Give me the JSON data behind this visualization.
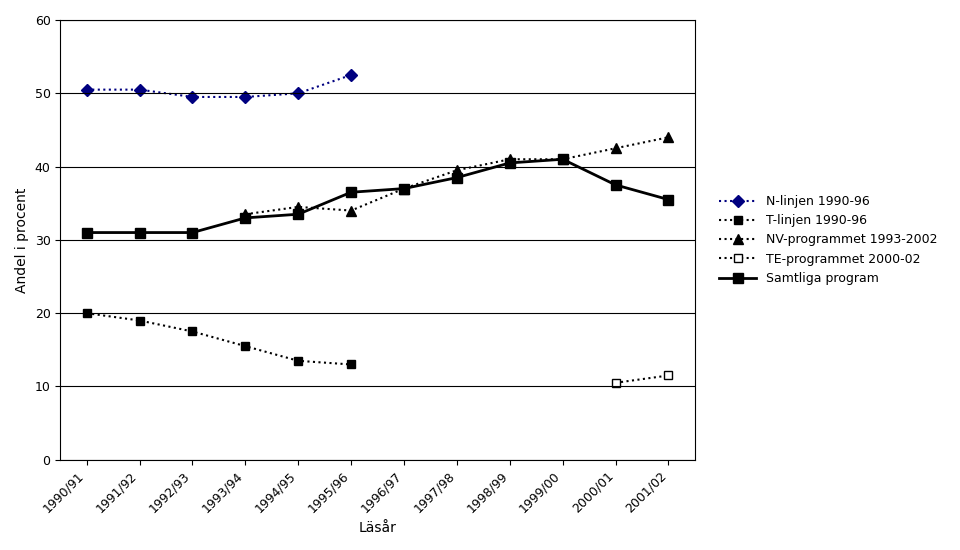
{
  "x_labels": [
    "1990/91",
    "1991/92",
    "1992/93",
    "1993/94",
    "1994/95",
    "1995/96",
    "1996/97",
    "1997/98",
    "1998/99",
    "1999/00",
    "2000/01",
    "2001/02"
  ],
  "x_indices": [
    0,
    1,
    2,
    3,
    4,
    5,
    6,
    7,
    8,
    9,
    10,
    11
  ],
  "N_linjen": {
    "label": "N-linjen 1990-96",
    "x": [
      0,
      1,
      2,
      3,
      4,
      5
    ],
    "y": [
      50.5,
      50.5,
      49.5,
      49.5,
      50.0,
      52.5
    ],
    "color": "#000080",
    "linestyle": "dotted",
    "marker": "D",
    "markersize": 6,
    "linewidth": 1.5,
    "markerfacecolor": "#000080"
  },
  "T_linjen": {
    "label": "T-linjen 1990-96",
    "x": [
      0,
      1,
      2,
      3,
      4,
      5
    ],
    "y": [
      20.0,
      19.0,
      17.5,
      15.5,
      13.5,
      13.0
    ],
    "color": "#000000",
    "linestyle": "dotted",
    "marker": "s",
    "markersize": 6,
    "linewidth": 1.5,
    "markerfacecolor": "#000000"
  },
  "NV_programmet": {
    "label": "NV-programmet 1993-2002",
    "x": [
      3,
      4,
      5,
      6,
      7,
      8,
      9,
      10,
      11
    ],
    "y": [
      33.5,
      34.5,
      34.0,
      37.0,
      39.5,
      41.0,
      41.0,
      42.5,
      44.0
    ],
    "color": "#000000",
    "linestyle": "dotted",
    "marker": "^",
    "markersize": 7,
    "linewidth": 1.5,
    "markerfacecolor": "#000000"
  },
  "TE_programmet": {
    "label": "TE-programmet 2000-02",
    "x": [
      10,
      11
    ],
    "y": [
      10.5,
      11.5
    ],
    "color": "#000000",
    "linestyle": "dotted",
    "marker": "s",
    "markersize": 6,
    "linewidth": 1.5,
    "markerfacecolor": "#ffffff",
    "markeredgecolor": "#000000"
  },
  "Samtliga": {
    "label": "Samtliga program",
    "x": [
      0,
      1,
      2,
      3,
      4,
      5,
      6,
      7,
      8,
      9,
      10,
      11
    ],
    "y": [
      31.0,
      31.0,
      31.0,
      33.0,
      33.5,
      36.5,
      37.0,
      38.5,
      40.5,
      41.0,
      37.5,
      35.5
    ],
    "color": "#000000",
    "linestyle": "solid",
    "marker": "s",
    "markersize": 7,
    "linewidth": 2.0,
    "markerfacecolor": "#000000"
  },
  "ylabel": "Andel i procent",
  "xlabel": "Läsår",
  "ylim": [
    0,
    60
  ],
  "yticks": [
    0,
    10,
    20,
    30,
    40,
    50,
    60
  ],
  "background_color": "#ffffff",
  "grid_color": "#000000",
  "title_fontsize": 10,
  "axis_fontsize": 10,
  "tick_fontsize": 9,
  "legend_fontsize": 9
}
